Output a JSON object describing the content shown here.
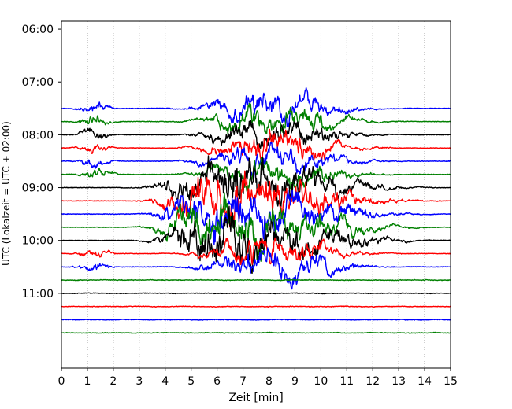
{
  "chart_data": {
    "type": "line",
    "title": "",
    "xlabel": "Zeit  [min]",
    "ylabel": "UTC (Lokalzeit = UTC + 02:00)",
    "xlim": [
      0,
      15
    ],
    "ylim_minutes_utc": [
      351,
      745
    ],
    "y_inverted": true,
    "x_ticks": [
      0,
      1,
      2,
      3,
      4,
      5,
      6,
      7,
      8,
      9,
      10,
      11,
      12,
      13,
      14,
      15
    ],
    "y_ticks": [
      "06:00",
      "07:00",
      "08:00",
      "09:00",
      "10:00",
      "11:00"
    ],
    "grid": "vertical dotted lines at each minute",
    "trace_interval_minutes": 15,
    "colors": {
      "blue": "#0000ff",
      "green": "#008000",
      "black": "#000000",
      "red": "#ff0000"
    },
    "series": [
      {
        "start": "07:30",
        "color": "blue"
      },
      {
        "start": "07:45",
        "color": "green"
      },
      {
        "start": "08:00",
        "color": "black"
      },
      {
        "start": "08:15",
        "color": "red"
      },
      {
        "start": "08:30",
        "color": "blue"
      },
      {
        "start": "08:45",
        "color": "green"
      },
      {
        "start": "09:00",
        "color": "black"
      },
      {
        "start": "09:15",
        "color": "red"
      },
      {
        "start": "09:30",
        "color": "blue"
      },
      {
        "start": "09:45",
        "color": "green"
      },
      {
        "start": "10:00",
        "color": "black"
      },
      {
        "start": "10:15",
        "color": "red"
      },
      {
        "start": "10:30",
        "color": "blue"
      },
      {
        "start": "10:45",
        "color": "green"
      },
      {
        "start": "11:00",
        "color": "black"
      },
      {
        "start": "11:15",
        "color": "red"
      },
      {
        "start": "11:30",
        "color": "blue"
      },
      {
        "start": "11:45",
        "color": "green"
      }
    ]
  }
}
